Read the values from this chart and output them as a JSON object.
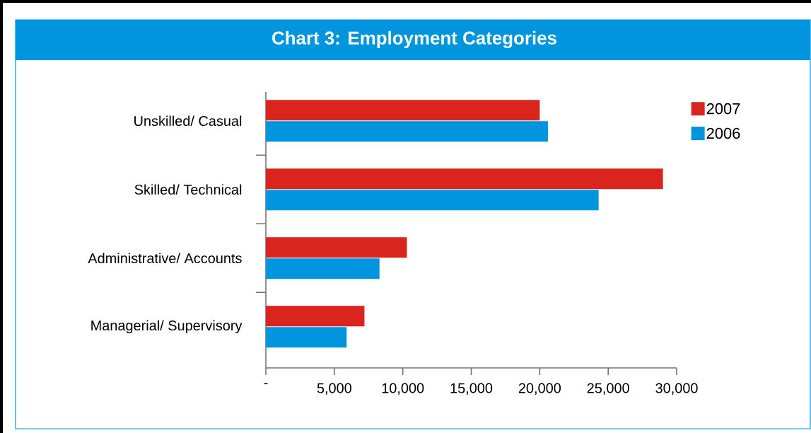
{
  "chart_data": {
    "type": "bar",
    "orientation": "horizontal",
    "title": "Chart  3: Employment Categories",
    "categories": [
      "Unskilled/ Casual",
      "Skilled/ Technical",
      "Administrative/ Accounts",
      "Managerial/ Supervisory"
    ],
    "series": [
      {
        "name": "2007",
        "color": "#d9251d",
        "values": [
          20000,
          29000,
          10300,
          7200
        ]
      },
      {
        "name": "2006",
        "color": "#0095de",
        "values": [
          20600,
          24300,
          8300,
          5900
        ]
      }
    ],
    "xlim": [
      0,
      30000
    ],
    "xticks": [
      {
        "value": 0,
        "label": "-"
      },
      {
        "value": 5000,
        "label": "5,000"
      },
      {
        "value": 10000,
        "label": "10,000"
      },
      {
        "value": 15000,
        "label": "15,000"
      },
      {
        "value": 20000,
        "label": "20,000"
      },
      {
        "value": 25000,
        "label": "25,000"
      },
      {
        "value": 30000,
        "label": "30,000"
      }
    ],
    "grid": false,
    "legend": "top right"
  }
}
